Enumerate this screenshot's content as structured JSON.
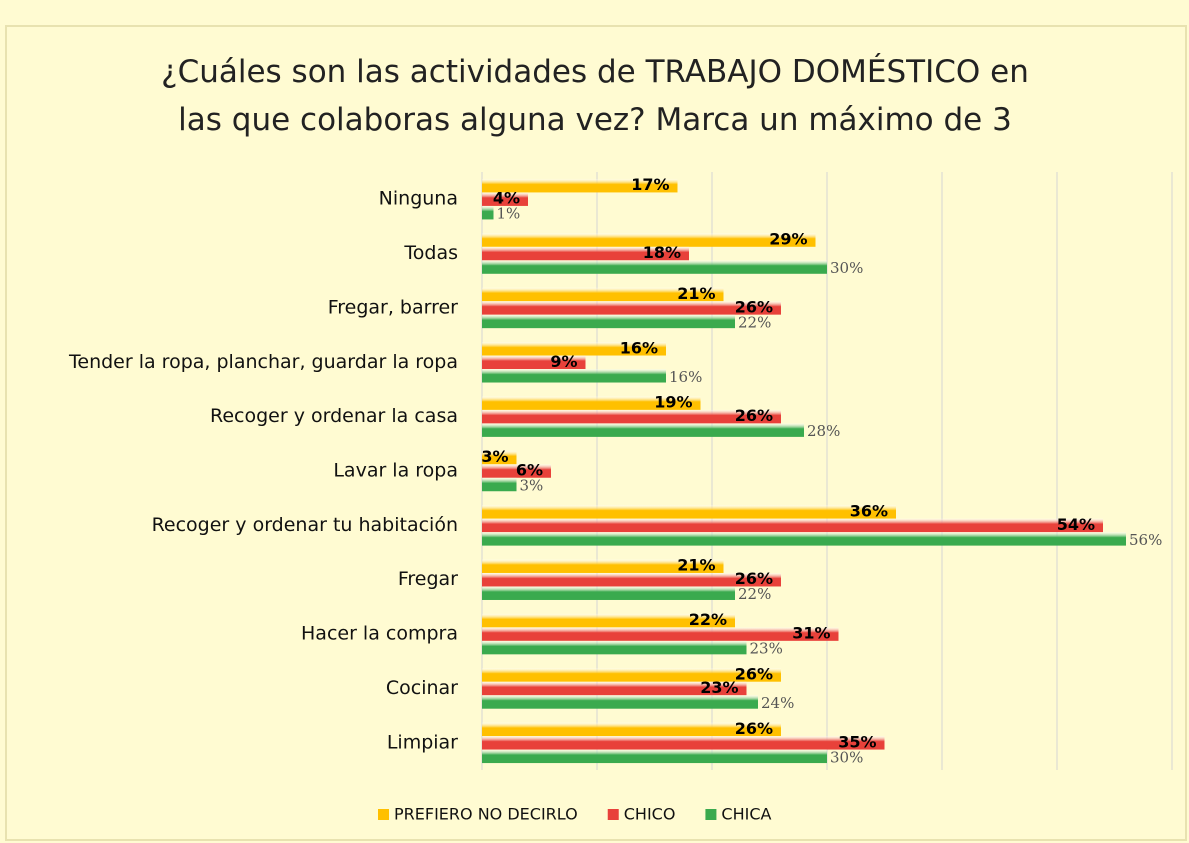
{
  "chart_data": {
    "type": "hbar",
    "title": "¿Cuáles son las actividades de TRABAJO DOMÉSTICO en las que colaboras  alguna vez? Marca un máximo de 3",
    "categories": [
      "Ninguna",
      "Todas",
      "Fregar, barrer",
      "Tender la ropa, planchar, guardar la ropa",
      "Recoger y ordenar la casa",
      "Lavar la ropa",
      "Recoger y ordenar tu habitación",
      "Fregar",
      "Hacer la compra",
      "Cocinar",
      "Limpiar"
    ],
    "series": [
      {
        "name": "PREFIERO NO DECIRLO",
        "color": "#FFC000",
        "values": [
          17,
          29,
          21,
          16,
          19,
          3,
          36,
          21,
          22,
          26,
          26
        ],
        "value_labels": [
          "17%",
          "29%",
          "21%",
          "16%",
          "19%",
          "3%",
          "36%",
          "21%",
          "22%",
          "26%",
          "26%"
        ]
      },
      {
        "name": "CHICO",
        "color": "#E8413A",
        "values": [
          4,
          18,
          26,
          9,
          26,
          6,
          54,
          26,
          31,
          23,
          35
        ],
        "value_labels": [
          "4%",
          "18%",
          "26%",
          "9%",
          "26%",
          "6%",
          "54%",
          "26%",
          "31%",
          "23%",
          "35%"
        ]
      },
      {
        "name": "CHICA",
        "color": "#3AAA4E",
        "values": [
          1,
          30,
          22,
          16,
          28,
          3,
          56,
          22,
          23,
          24,
          30
        ],
        "value_labels": [
          "1%",
          "30%",
          "22%",
          "16%",
          "28%",
          "3%",
          "56%",
          "22%",
          "23%",
          "24%",
          "30%"
        ]
      }
    ],
    "xlim": [
      0,
      60
    ],
    "xticks": [
      0,
      10,
      20,
      30,
      40,
      50,
      60
    ],
    "grid": true,
    "legend": "bottom"
  }
}
